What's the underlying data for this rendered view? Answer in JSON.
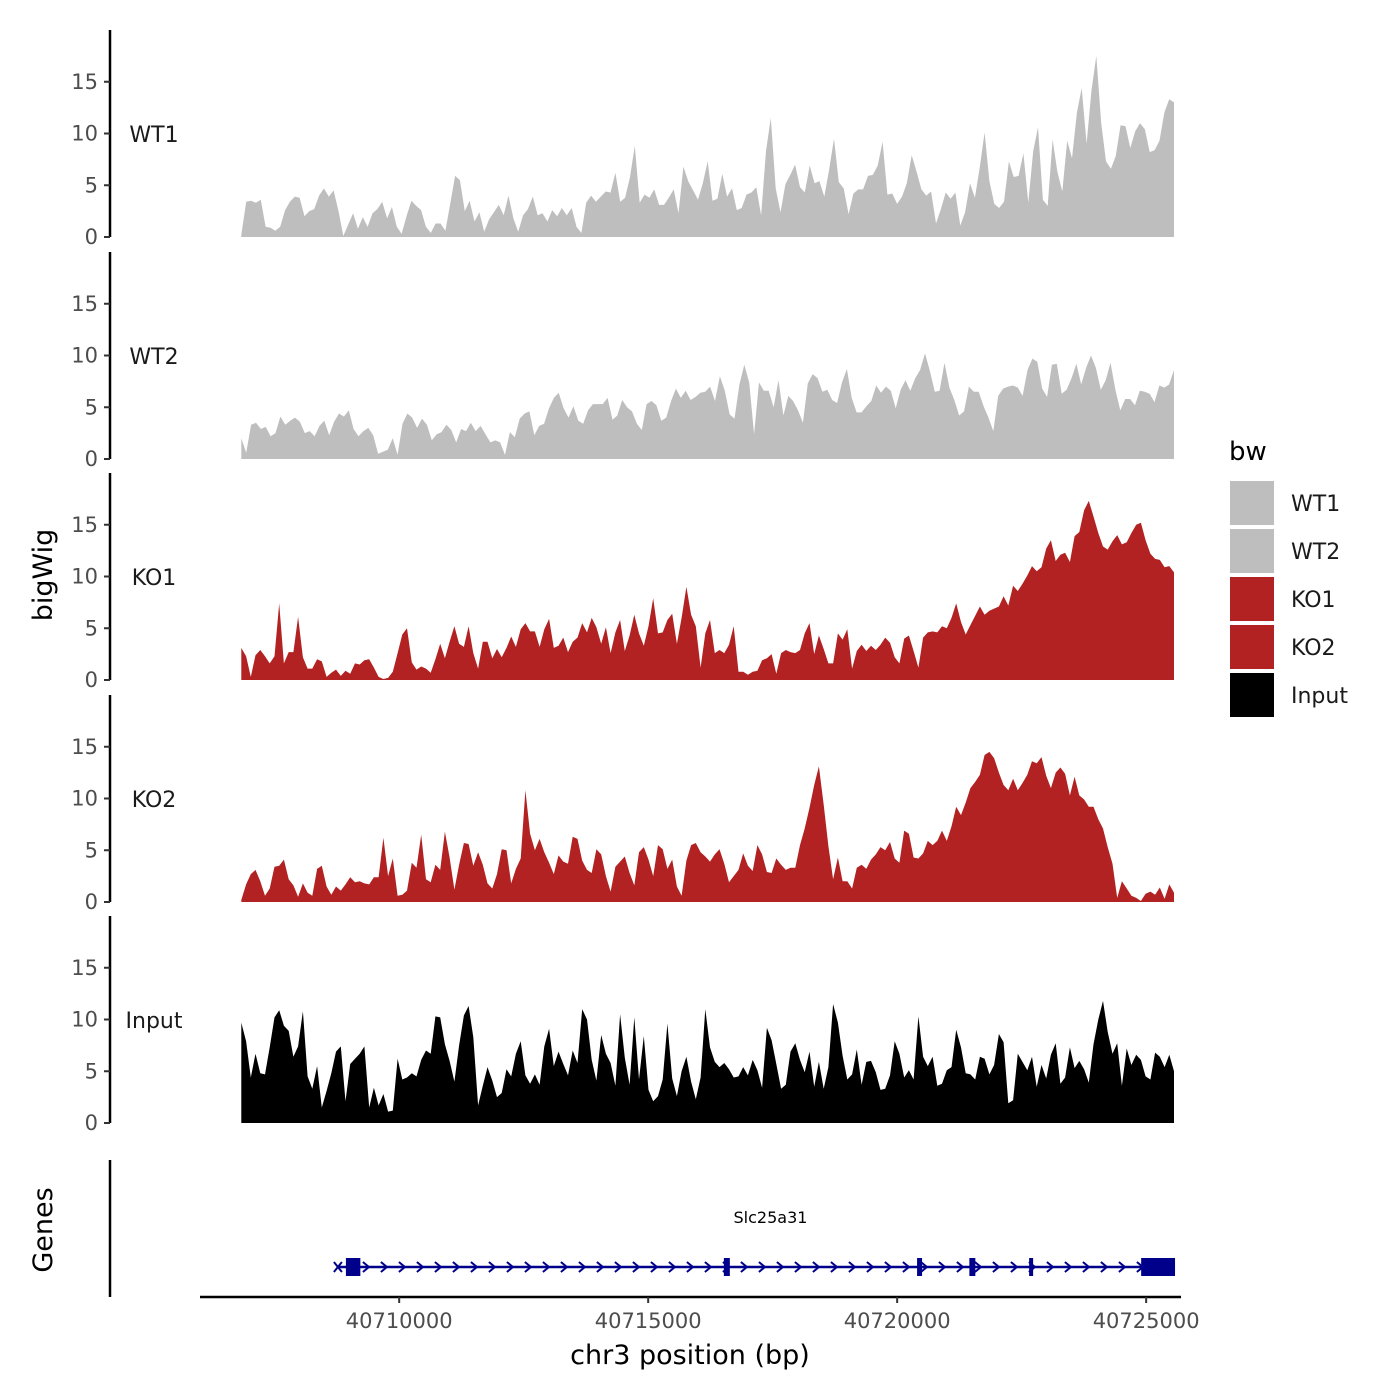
{
  "chart_data": {
    "type": "area",
    "ylabel": "bigWig",
    "xlabel": "chr3 position (bp)",
    "genes_label": "Genes",
    "x_range": [
      40706000,
      40725700
    ],
    "x_ticks": [
      {
        "value": 40710000,
        "label": "40710000"
      },
      {
        "value": 40715000,
        "label": "40715000"
      },
      {
        "value": 40720000,
        "label": "40720000"
      },
      {
        "value": 40725000,
        "label": "40725000"
      }
    ],
    "ylim": [
      0,
      20
    ],
    "y_ticks": [
      {
        "value": 0,
        "label": "0"
      },
      {
        "value": 5,
        "label": "5"
      },
      {
        "value": 10,
        "label": "10"
      },
      {
        "value": 15,
        "label": "15"
      }
    ],
    "signal_x_range": [
      40706830,
      40725560
    ],
    "legend": {
      "title": "bw",
      "entries": [
        {
          "label": "WT1",
          "color": "#bebebe"
        },
        {
          "label": "WT2",
          "color": "#bebebe"
        },
        {
          "label": "KO1",
          "color": "#b22222"
        },
        {
          "label": "KO2",
          "color": "#b22222"
        },
        {
          "label": "Input",
          "color": "#000000"
        }
      ]
    },
    "tracks": [
      {
        "name": "WT1",
        "color": "#bebebe",
        "values": [
          0.2,
          3.4,
          3.5,
          3.3,
          3.6,
          1.0,
          0.9,
          0.6,
          1.0,
          2.6,
          3.4,
          3.9,
          3.8,
          2.0,
          2.5,
          2.7,
          4.0,
          4.7,
          3.9,
          4.5,
          2.5,
          0.1,
          1.2,
          2.3,
          0.8,
          1.9,
          1.0,
          2.3,
          2.7,
          3.4,
          1.8,
          2.9,
          1.0,
          0.3,
          2.0,
          3.5,
          3.0,
          2.6,
          1.0,
          0.4,
          1.3,
          1.3,
          0.6,
          3.2,
          5.9,
          5.5,
          2.5,
          3.5,
          1.5,
          2.4,
          0.5,
          1.7,
          2.4,
          3.1,
          2.1,
          4.0,
          1.8,
          0.5,
          2.1,
          2.7,
          3.9,
          2.1,
          2.3,
          1.5,
          2.6,
          2.0,
          2.8,
          2.1,
          2.8,
          1.0,
          0.4,
          3.3,
          4.0,
          3.4,
          3.9,
          4.4,
          4.3,
          6.2,
          3.4,
          3.8,
          5.8,
          8.8,
          3.3,
          4.1,
          3.8,
          4.6,
          3.1,
          3.1,
          3.8,
          4.6,
          2.3,
          6.8,
          5.4,
          4.5,
          3.6,
          5.2,
          7.3,
          3.5,
          3.7,
          6.1,
          3.9,
          4.7,
          2.6,
          2.8,
          4.1,
          4.3,
          4.8,
          2.1,
          8.3,
          11.5,
          4.7,
          2.4,
          5.1,
          6.0,
          7.0,
          4.8,
          4.3,
          6.9,
          5.2,
          5.4,
          3.9,
          6.5,
          9.5,
          5.3,
          4.7,
          2.2,
          4.2,
          4.6,
          4.6,
          5.9,
          6.0,
          6.9,
          9.2,
          4.1,
          4.2,
          3.2,
          3.9,
          5.2,
          7.9,
          6.3,
          4.6,
          4.0,
          4.4,
          1.3,
          2.7,
          4.3,
          3.7,
          4.3,
          1.1,
          2.4,
          5.2,
          3.8,
          6.7,
          10.1,
          5.4,
          3.2,
          2.8,
          3.4,
          7.3,
          5.8,
          5.9,
          8.1,
          3.3,
          8.3,
          10.6,
          3.6,
          3.0,
          9.4,
          6.3,
          4.4,
          9.3,
          7.6,
          12.0,
          14.4,
          9.0,
          14.1,
          17.5,
          11.0,
          7.3,
          6.6,
          7.8,
          10.8,
          10.7,
          8.6,
          10.2,
          11.0,
          10.4,
          8.2,
          8.4,
          9.3,
          12.0,
          13.3,
          13.0
        ]
      },
      {
        "name": "WT2",
        "color": "#bebebe",
        "values": [
          2.0,
          0.6,
          3.3,
          3.5,
          2.9,
          3.1,
          2.2,
          2.5,
          4.1,
          3.3,
          3.7,
          4.0,
          3.6,
          2.5,
          2.7,
          2.2,
          3.2,
          3.7,
          2.3,
          3.6,
          4.4,
          4.1,
          4.7,
          2.9,
          2.2,
          2.7,
          3.0,
          2.3,
          0.5,
          0.7,
          0.9,
          2.0,
          0.4,
          3.4,
          4.4,
          4.0,
          3.0,
          3.9,
          3.3,
          1.8,
          2.4,
          2.6,
          3.3,
          2.8,
          1.6,
          2.9,
          2.7,
          3.5,
          2.7,
          3.2,
          2.4,
          1.6,
          1.8,
          1.6,
          0.4,
          2.6,
          2.1,
          3.9,
          4.4,
          4.6,
          2.3,
          3.2,
          3.4,
          4.9,
          5.9,
          6.4,
          4.9,
          4.0,
          5.1,
          3.7,
          3.4,
          4.7,
          5.3,
          5.3,
          5.3,
          5.9,
          3.8,
          4.2,
          5.7,
          5.0,
          4.6,
          3.4,
          2.8,
          5.3,
          5.6,
          5.2,
          3.7,
          4.0,
          5.6,
          6.8,
          5.9,
          6.6,
          5.7,
          6.0,
          6.4,
          6.5,
          7.0,
          5.6,
          8.0,
          6.6,
          4.3,
          3.9,
          7.2,
          9.1,
          7.4,
          2.4,
          7.4,
          6.6,
          6.6,
          5.0,
          7.6,
          4.2,
          6.1,
          5.6,
          4.7,
          3.5,
          7.3,
          8.2,
          7.8,
          6.5,
          6.7,
          5.7,
          5.4,
          7.4,
          8.7,
          5.9,
          4.5,
          4.5,
          5.1,
          5.6,
          7.1,
          6.4,
          7.0,
          6.6,
          4.9,
          6.7,
          7.6,
          6.6,
          7.8,
          8.6,
          10.2,
          8.5,
          6.5,
          6.6,
          9.3,
          6.9,
          5.7,
          4.2,
          4.6,
          7.0,
          6.5,
          6.5,
          5.1,
          4.0,
          2.7,
          6.1,
          6.8,
          7.0,
          7.1,
          6.9,
          6.1,
          8.6,
          9.7,
          9.4,
          6.8,
          6.0,
          9.1,
          9.2,
          6.3,
          6.7,
          7.8,
          9.2,
          7.2,
          8.8,
          10.0,
          8.8,
          6.7,
          7.6,
          9.3,
          6.7,
          4.7,
          5.8,
          5.8,
          5.2,
          6.6,
          6.5,
          6.3,
          5.5,
          7.1,
          6.9,
          7.2,
          8.6
        ]
      },
      {
        "name": "KO1",
        "color": "#b22222",
        "values": [
          3.1,
          2.3,
          0.3,
          2.4,
          2.9,
          2.3,
          1.6,
          2.3,
          7.4,
          1.6,
          2.7,
          2.7,
          6.1,
          2.2,
          1.1,
          1.1,
          2.0,
          1.8,
          0.3,
          0.7,
          1.0,
          0.4,
          0.9,
          0.6,
          1.6,
          1.5,
          1.9,
          2.0,
          1.2,
          0.3,
          0.1,
          0.2,
          0.8,
          2.6,
          4.4,
          5.0,
          1.7,
          1.0,
          1.3,
          1.1,
          0.7,
          2.0,
          3.5,
          2.1,
          3.7,
          5.2,
          3.5,
          3.2,
          5.2,
          2.6,
          1.1,
          3.7,
          3.7,
          2.1,
          3.0,
          2.2,
          3.1,
          4.2,
          3.2,
          4.9,
          5.5,
          4.7,
          4.7,
          3.2,
          4.9,
          5.9,
          3.1,
          3.3,
          4.1,
          2.7,
          3.7,
          4.1,
          5.5,
          4.6,
          6.0,
          5.1,
          3.5,
          5.1,
          2.6,
          4.6,
          5.8,
          2.8,
          4.3,
          6.3,
          4.5,
          3.3,
          5.2,
          7.9,
          4.5,
          4.6,
          5.8,
          6.4,
          3.5,
          6.0,
          9.0,
          6.3,
          5.2,
          1.2,
          4.5,
          5.8,
          2.6,
          2.9,
          2.6,
          3.4,
          5.2,
          0.8,
          0.8,
          0.5,
          0.8,
          0.9,
          1.9,
          2.1,
          2.5,
          0.6,
          2.6,
          2.9,
          2.7,
          2.6,
          2.9,
          4.5,
          5.5,
          2.5,
          4.3,
          3.0,
          1.6,
          1.6,
          4.5,
          3.9,
          4.9,
          1.1,
          2.8,
          3.4,
          2.8,
          3.3,
          2.9,
          3.4,
          4.1,
          3.6,
          2.2,
          1.6,
          4.0,
          4.3,
          2.8,
          1.2,
          4.1,
          4.6,
          4.7,
          4.6,
          5.2,
          5.0,
          6.0,
          7.4,
          5.6,
          4.4,
          5.3,
          6.2,
          7.1,
          6.3,
          6.7,
          6.9,
          7.1,
          8.1,
          7.2,
          9.1,
          8.6,
          9.3,
          10.1,
          11.0,
          10.5,
          10.9,
          12.7,
          13.5,
          11.5,
          12.1,
          12.3,
          11.4,
          13.9,
          14.3,
          16.4,
          17.3,
          15.8,
          14.2,
          12.9,
          12.6,
          13.4,
          14.0,
          13.1,
          13.3,
          14.2,
          15.0,
          15.2,
          13.5,
          12.2,
          11.7,
          11.6,
          10.9,
          11.0,
          10.4
        ]
      },
      {
        "name": "KO2",
        "color": "#b22222",
        "values": [
          0.2,
          1.7,
          2.7,
          3.1,
          2.0,
          0.6,
          1.3,
          3.4,
          3.5,
          4.1,
          2.2,
          1.6,
          0.5,
          1.8,
          0.9,
          0.6,
          3.2,
          3.5,
          1.5,
          0.7,
          1.5,
          1.1,
          1.7,
          2.4,
          1.9,
          2.0,
          1.8,
          1.7,
          2.4,
          2.4,
          6.2,
          2.5,
          4.2,
          0.6,
          0.7,
          1.1,
          3.8,
          3.3,
          6.5,
          2.2,
          1.9,
          3.6,
          3.1,
          6.8,
          4.3,
          1.2,
          3.6,
          5.7,
          5.6,
          3.5,
          4.8,
          3.6,
          1.8,
          1.3,
          2.7,
          5.1,
          5.0,
          1.8,
          3.2,
          4.2,
          10.8,
          6.6,
          5.0,
          6.1,
          4.8,
          3.8,
          2.7,
          4.5,
          3.9,
          3.7,
          6.3,
          6.1,
          4.0,
          3.1,
          2.8,
          5.1,
          4.6,
          2.5,
          1.0,
          3.4,
          3.9,
          4.4,
          2.8,
          1.6,
          4.8,
          5.3,
          4.1,
          2.5,
          5.5,
          5.1,
          3.2,
          4.1,
          1.5,
          0.6,
          4.0,
          5.5,
          5.7,
          4.8,
          4.4,
          3.9,
          4.6,
          5.1,
          3.7,
          1.9,
          2.5,
          3.1,
          4.7,
          3.5,
          3.0,
          5.5,
          4.6,
          2.9,
          2.8,
          4.2,
          3.6,
          3.1,
          3.3,
          3.3,
          5.5,
          7.1,
          9.1,
          11.3,
          13.1,
          9.4,
          5.4,
          2.2,
          4.3,
          2.0,
          2.0,
          1.3,
          3.3,
          3.6,
          3.2,
          4.1,
          4.6,
          5.3,
          5.0,
          5.8,
          4.2,
          3.8,
          6.9,
          6.6,
          4.3,
          4.2,
          4.7,
          5.9,
          5.5,
          5.9,
          6.9,
          5.9,
          7.3,
          9.2,
          8.4,
          9.6,
          11.0,
          11.6,
          12.3,
          14.2,
          14.5,
          13.9,
          12.5,
          11.3,
          10.8,
          11.9,
          10.8,
          11.5,
          12.3,
          13.6,
          13.4,
          14.0,
          12.2,
          11.0,
          12.5,
          13.0,
          12.4,
          10.3,
          12.1,
          10.3,
          9.9,
          9.2,
          9.2,
          8.0,
          7.1,
          5.3,
          3.7,
          0.4,
          2.0,
          1.3,
          0.6,
          0.4,
          0.1,
          0.8,
          1.0,
          0.7,
          1.4,
          0.3,
          1.7,
          0.9
        ]
      },
      {
        "name": "Input",
        "color": "#000000",
        "values": [
          9.7,
          7.9,
          4.4,
          6.7,
          4.8,
          4.7,
          7.3,
          10.2,
          10.9,
          9.4,
          8.9,
          6.4,
          7.4,
          10.8,
          4.5,
          3.3,
          5.5,
          1.5,
          3.1,
          4.8,
          6.9,
          7.4,
          2.1,
          5.7,
          6.2,
          6.7,
          7.4,
          1.5,
          3.4,
          1.7,
          2.8,
          1.1,
          1.2,
          6.2,
          4.2,
          4.4,
          4.8,
          4.5,
          6.1,
          7.0,
          6.7,
          10.3,
          10.2,
          7.6,
          6.0,
          4.0,
          7.5,
          10.4,
          11.3,
          8.3,
          1.7,
          3.6,
          5.4,
          4.1,
          2.5,
          2.9,
          5.2,
          4.5,
          6.7,
          7.9,
          4.6,
          3.8,
          4.7,
          3.7,
          7.4,
          9.1,
          5.5,
          6.9,
          5.7,
          4.6,
          7.0,
          5.8,
          11.0,
          10.0,
          6.1,
          4.1,
          8.5,
          6.7,
          5.8,
          3.6,
          10.5,
          6.3,
          3.7,
          10.2,
          4.2,
          8.4,
          3.2,
          2.1,
          2.6,
          4.2,
          9.6,
          4.3,
          2.6,
          5.0,
          6.4,
          4.0,
          2.3,
          4.4,
          11.0,
          7.3,
          5.9,
          5.4,
          5.8,
          5.2,
          4.4,
          4.5,
          5.4,
          4.6,
          6.1,
          5.1,
          3.4,
          9.2,
          8.0,
          5.7,
          3.3,
          3.7,
          6.9,
          7.7,
          6.1,
          4.9,
          6.9,
          3.5,
          5.9,
          3.3,
          5.4,
          11.5,
          9.7,
          6.5,
          4.2,
          4.7,
          7.1,
          3.7,
          5.9,
          6.0,
          4.9,
          3.2,
          3.3,
          4.6,
          7.9,
          6.7,
          4.4,
          5.1,
          4.2,
          10.3,
          6.4,
          5.5,
          6.4,
          3.6,
          3.8,
          5.1,
          5.4,
          9.0,
          7.3,
          4.8,
          4.7,
          4.2,
          6.4,
          6.2,
          4.7,
          5.6,
          8.6,
          7.8,
          1.9,
          2.2,
          6.7,
          5.9,
          5.1,
          6.4,
          3.5,
          5.6,
          4.3,
          6.6,
          7.7,
          3.8,
          4.4,
          7.3,
          5.3,
          6.0,
          5.2,
          3.9,
          7.6,
          10.0,
          11.8,
          8.8,
          6.7,
          7.7,
          3.6,
          7.2,
          5.6,
          6.6,
          6.1,
          4.5,
          4.2,
          6.8,
          6.4,
          5.4,
          6.6,
          5.0
        ]
      }
    ],
    "genes": [
      {
        "name": "Slc25a31",
        "start": 40708930,
        "end": 40725580,
        "strand": "+",
        "color": "#00008b",
        "exons": [
          [
            40708930,
            40709220
          ],
          [
            40716520,
            40716640
          ],
          [
            40720400,
            40720500
          ],
          [
            40721450,
            40721570
          ],
          [
            40722650,
            40722730
          ],
          [
            40724900,
            40725580
          ]
        ]
      }
    ]
  }
}
